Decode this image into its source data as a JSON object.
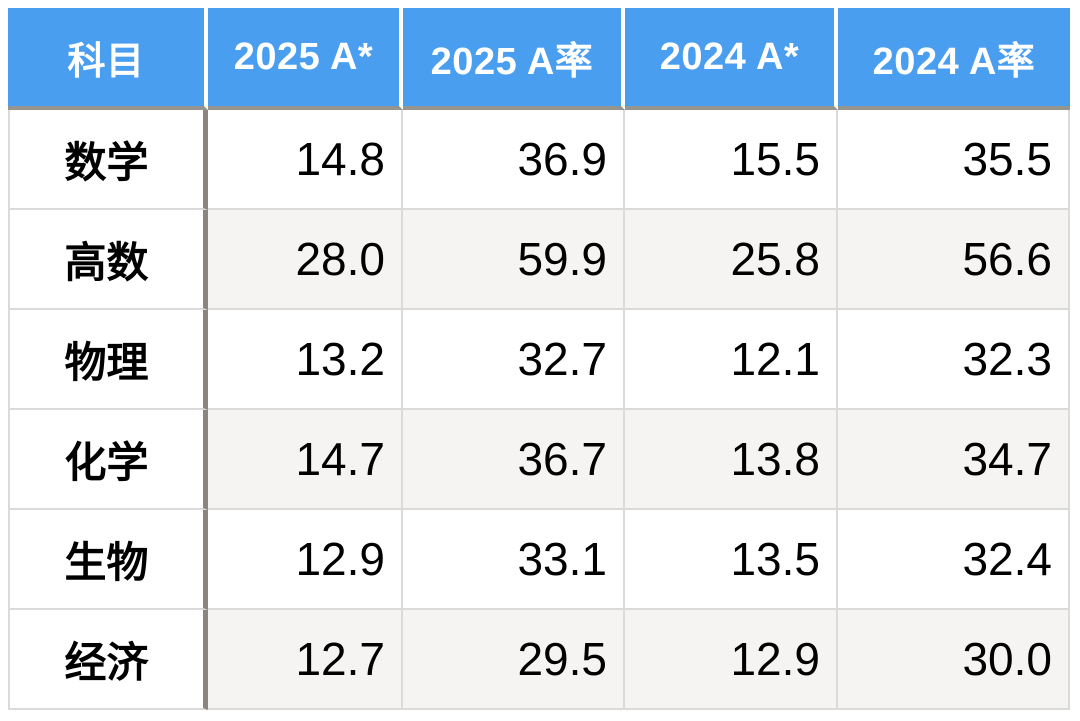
{
  "table": {
    "columns": [
      "科目",
      "2025 A*",
      "2025 A率",
      "2024 A*",
      "2024 A率"
    ],
    "rows": [
      {
        "subject": "数学",
        "values": [
          "14.8",
          "36.9",
          "15.5",
          "35.5"
        ]
      },
      {
        "subject": "高数",
        "values": [
          "28.0",
          "59.9",
          "25.8",
          "56.6"
        ]
      },
      {
        "subject": "物理",
        "values": [
          "13.2",
          "32.7",
          "12.1",
          "32.3"
        ]
      },
      {
        "subject": "化学",
        "values": [
          "14.7",
          "36.7",
          "13.8",
          "34.7"
        ]
      },
      {
        "subject": "生物",
        "values": [
          "12.9",
          "33.1",
          "13.5",
          "32.4"
        ]
      },
      {
        "subject": "经济",
        "values": [
          "12.7",
          "29.5",
          "12.9",
          "30.0"
        ]
      }
    ]
  },
  "chart_data": {
    "type": "table",
    "title": "",
    "columns": [
      "科目",
      "2025 A*",
      "2025 A率",
      "2024 A*",
      "2024 A率"
    ],
    "rows": [
      [
        "数学",
        14.8,
        36.9,
        15.5,
        35.5
      ],
      [
        "高数",
        28.0,
        59.9,
        25.8,
        56.6
      ],
      [
        "物理",
        13.2,
        32.7,
        12.1,
        32.3
      ],
      [
        "化学",
        14.7,
        36.7,
        13.8,
        34.7
      ],
      [
        "生物",
        12.9,
        33.1,
        13.5,
        32.4
      ],
      [
        "经济",
        12.7,
        29.5,
        12.9,
        30.0
      ]
    ],
    "layout_hints": {
      "zebra_striping": "even data rows shaded, subject column always white",
      "value_alignment": "right",
      "header_style": "blue background, white bold text"
    }
  },
  "colors": {
    "header_bg": "#4A9EEF",
    "header_text": "#FFFFFF",
    "header_underline": "#96948F",
    "subject_divider": "#8A857F",
    "grid_line": "#DADAD8",
    "zebra_row_bg": "#F5F4F2",
    "body_text": "#000000"
  }
}
